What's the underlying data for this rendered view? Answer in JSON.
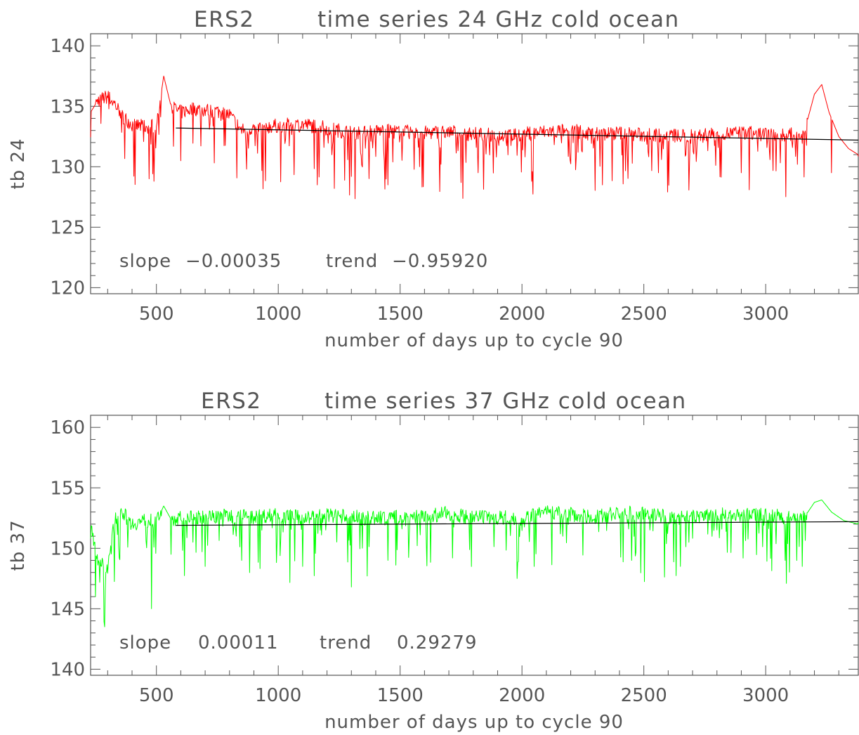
{
  "chart_data": [
    {
      "type": "line",
      "title_left": "ERS2",
      "title_right": "time series 24 GHz cold ocean",
      "xlabel": "number of days up to cycle 90",
      "ylabel": "tb 24",
      "xlim": [
        230,
        3380
      ],
      "ylim": [
        119.5,
        141
      ],
      "xticks": [
        500,
        1000,
        1500,
        2000,
        2500,
        3000
      ],
      "yticks": [
        120,
        125,
        130,
        135,
        140
      ],
      "slope_label": "slope",
      "slope_value": "−0.00035",
      "trend_label": "trend",
      "trend_value": "−0.95920",
      "series": [
        {
          "color": "#ff0000",
          "kind": "noisy time series",
          "points": [
            [
              230,
              134.5
            ],
            [
              260,
              135.5
            ],
            [
              300,
              135.8
            ],
            [
              330,
              135.2
            ],
            [
              360,
              134.2
            ],
            [
              400,
              133.5
            ],
            [
              450,
              133.3
            ],
            [
              500,
              133.4
            ],
            [
              530,
              137.5
            ],
            [
              560,
              135.0
            ],
            [
              600,
              134.5
            ],
            [
              650,
              134.8
            ],
            [
              700,
              134.7
            ],
            [
              750,
              134.6
            ],
            [
              800,
              134.3
            ],
            [
              850,
              133.0
            ],
            [
              900,
              133.2
            ],
            [
              1000,
              133.4
            ],
            [
              1100,
              133.5
            ],
            [
              1200,
              133.2
            ],
            [
              1300,
              132.8
            ],
            [
              1400,
              133.0
            ],
            [
              1500,
              132.9
            ],
            [
              1600,
              132.8
            ],
            [
              1700,
              132.9
            ],
            [
              1800,
              132.7
            ],
            [
              1900,
              132.6
            ],
            [
              2000,
              132.7
            ],
            [
              2100,
              132.9
            ],
            [
              2200,
              133.0
            ],
            [
              2300,
              132.7
            ],
            [
              2400,
              132.8
            ],
            [
              2500,
              132.6
            ],
            [
              2600,
              132.6
            ],
            [
              2700,
              132.5
            ],
            [
              2800,
              132.7
            ],
            [
              2900,
              132.8
            ],
            [
              3000,
              132.7
            ],
            [
              3100,
              132.6
            ],
            [
              3160,
              133.0
            ],
            [
              3200,
              136.0
            ],
            [
              3230,
              136.8
            ],
            [
              3260,
              134.5
            ],
            [
              3300,
              132.5
            ],
            [
              3340,
              131.5
            ],
            [
              3380,
              131.0
            ]
          ],
          "dips": [
            [
              470,
              129.0
            ],
            [
              490,
              128.8
            ],
            [
              600,
              130.5
            ],
            [
              870,
              129.8
            ],
            [
              1160,
              128.5
            ],
            [
              1230,
              128.2
            ],
            [
              1300,
              129.2
            ],
            [
              1450,
              128.5
            ],
            [
              1580,
              130.0
            ],
            [
              1820,
              129.5
            ],
            [
              2040,
              128.8
            ],
            [
              2330,
              128.5
            ],
            [
              2560,
              129.5
            ],
            [
              2900,
              129.5
            ],
            [
              3130,
              130.2
            ],
            [
              3270,
              129.5
            ]
          ]
        },
        {
          "color": "#000000",
          "kind": "linear fit",
          "points": [
            [
              580,
              133.2
            ],
            [
              3380,
              132.2
            ]
          ]
        }
      ]
    },
    {
      "type": "line",
      "title_left": "ERS2",
      "title_right": "time series 37 GHz cold ocean",
      "xlabel": "number of days up to cycle 90",
      "ylabel": "tb 37",
      "xlim": [
        230,
        3380
      ],
      "ylim": [
        139.5,
        161
      ],
      "xticks": [
        500,
        1000,
        1500,
        2000,
        2500,
        3000
      ],
      "yticks": [
        140,
        145,
        150,
        155,
        160
      ],
      "slope_label": "slope",
      "slope_value": "0.00011",
      "trend_label": "trend",
      "trend_value": "0.29279",
      "series": [
        {
          "color": "#00ff00",
          "kind": "noisy time series",
          "points": [
            [
              230,
              152.0
            ],
            [
              260,
              149.0
            ],
            [
              300,
              148.2
            ],
            [
              330,
              152.5
            ],
            [
              360,
              153.0
            ],
            [
              400,
              152.0
            ],
            [
              450,
              152.3
            ],
            [
              500,
              152.2
            ],
            [
              530,
              153.5
            ],
            [
              560,
              152.4
            ],
            [
              600,
              152.5
            ],
            [
              700,
              152.6
            ],
            [
              800,
              152.7
            ],
            [
              900,
              152.6
            ],
            [
              1000,
              152.8
            ],
            [
              1100,
              152.5
            ],
            [
              1200,
              152.7
            ],
            [
              1300,
              152.6
            ],
            [
              1400,
              152.5
            ],
            [
              1500,
              152.6
            ],
            [
              1600,
              152.7
            ],
            [
              1700,
              152.9
            ],
            [
              1800,
              152.5
            ],
            [
              1900,
              152.6
            ],
            [
              2000,
              152.5
            ],
            [
              2100,
              153.0
            ],
            [
              2200,
              152.8
            ],
            [
              2300,
              152.6
            ],
            [
              2400,
              152.9
            ],
            [
              2500,
              152.9
            ],
            [
              2600,
              152.6
            ],
            [
              2700,
              152.6
            ],
            [
              2800,
              152.8
            ],
            [
              2900,
              152.7
            ],
            [
              3000,
              152.8
            ],
            [
              3100,
              152.5
            ],
            [
              3160,
              152.6
            ],
            [
              3200,
              153.8
            ],
            [
              3230,
              154.0
            ],
            [
              3270,
              153.0
            ],
            [
              3320,
              152.3
            ],
            [
              3380,
              152.0
            ]
          ],
          "dips": [
            [
              250,
              146.0
            ],
            [
              290,
              146.5
            ],
            [
              480,
              145.0
            ],
            [
              560,
              149.5
            ],
            [
              700,
              148.5
            ],
            [
              850,
              149.0
            ],
            [
              1100,
              148.5
            ],
            [
              1300,
              146.8
            ],
            [
              1450,
              149.0
            ],
            [
              1980,
              147.5
            ],
            [
              2050,
              148.5
            ],
            [
              2450,
              149.0
            ],
            [
              2650,
              148.5
            ],
            [
              3080,
              149.0
            ],
            [
              3150,
              148.5
            ]
          ]
        },
        {
          "color": "#000000",
          "kind": "linear fit",
          "points": [
            [
              580,
              151.9
            ],
            [
              3380,
              152.2
            ]
          ]
        }
      ]
    }
  ]
}
